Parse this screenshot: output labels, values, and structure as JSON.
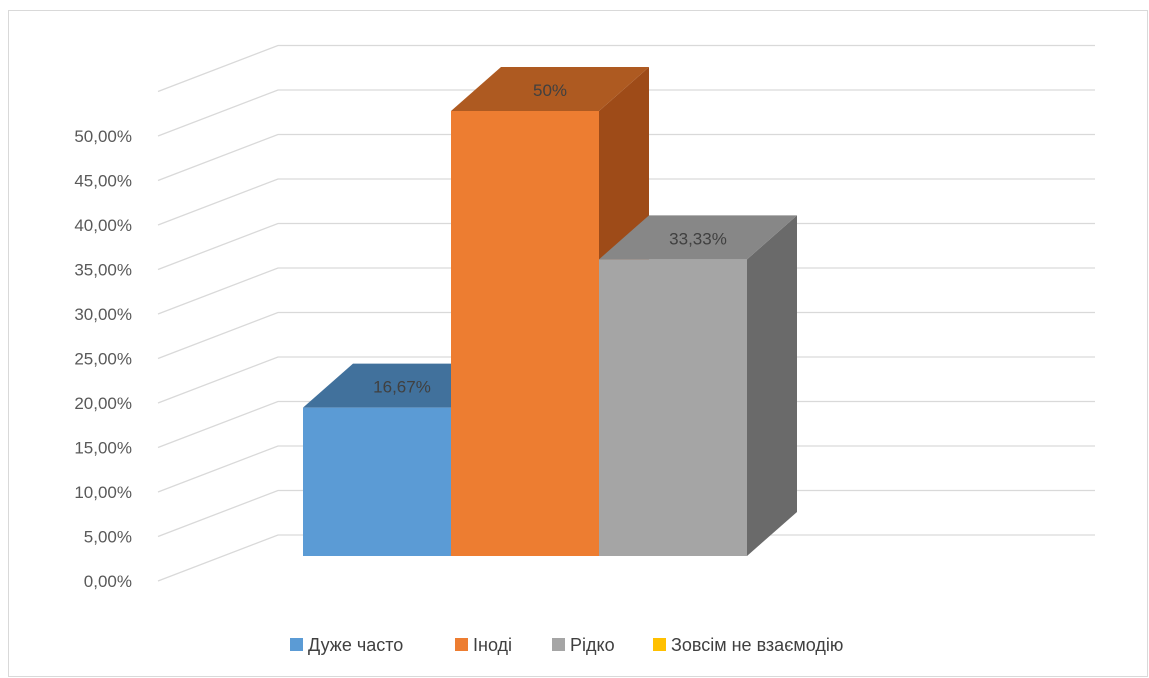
{
  "chart_data": {
    "type": "bar",
    "categories": [
      "Дуже часто",
      "Іноді",
      "Рідко",
      "Зовсім не взаємодію"
    ],
    "values": [
      16.67,
      50,
      33.33,
      0
    ],
    "data_labels": [
      "16,67%",
      "50%",
      "33,33%",
      ""
    ],
    "ylim": [
      0,
      55
    ],
    "ytick_values": [
      0,
      5,
      10,
      15,
      20,
      25,
      30,
      35,
      40,
      45,
      50
    ],
    "ytick_labels": [
      "0,00%",
      "5,00%",
      "10,00%",
      "15,00%",
      "20,00%",
      "25,00%",
      "30,00%",
      "35,00%",
      "40,00%",
      "45,00%",
      "50,00%"
    ],
    "grid": true,
    "style": "3d-column",
    "legend_position": "bottom",
    "colors": {
      "front": [
        "#5b9bd5",
        "#ed7d31",
        "#a5a5a5",
        "#ffc000"
      ],
      "top": [
        "#41719c",
        "#ae5a21",
        "#878787",
        "#bf9000"
      ],
      "side": [
        "#2f5597",
        "#9e4b18",
        "#6a6a6a",
        "#997300"
      ],
      "grid": "#d9d9d9",
      "axis_text": "#595959"
    }
  }
}
